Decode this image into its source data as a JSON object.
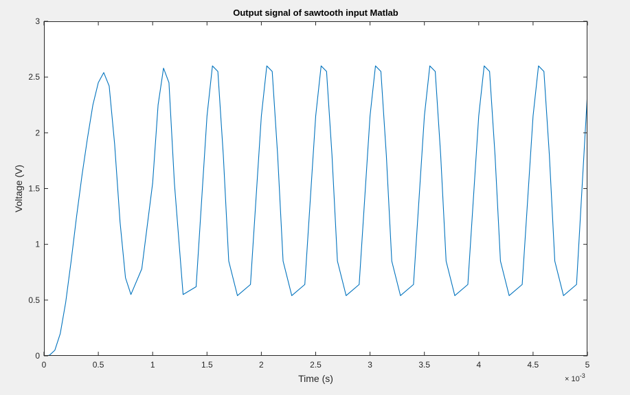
{
  "chart_data": {
    "type": "line",
    "title": "Output signal of sawtooth input Matlab",
    "xlabel": "Time (s)",
    "ylabel": "Voltage (V)",
    "xlim": [
      0,
      0.005
    ],
    "ylim": [
      0,
      3
    ],
    "x_exponent_label": "× 10",
    "x_exponent": "-3",
    "xticks": [
      0,
      0.0005,
      0.001,
      0.0015,
      0.002,
      0.0025,
      0.003,
      0.0035,
      0.004,
      0.0045,
      0.005
    ],
    "xtick_labels": [
      "0",
      "0.5",
      "1",
      "1.5",
      "2",
      "2.5",
      "3",
      "3.5",
      "4",
      "4.5",
      "5"
    ],
    "yticks": [
      0,
      0.5,
      1,
      1.5,
      2,
      2.5,
      3
    ],
    "ytick_labels": [
      "0",
      "0.5",
      "1",
      "1.5",
      "2",
      "2.5",
      "3"
    ],
    "grid": false,
    "colors": {
      "line": "#0072bd",
      "axes_bg": "#ffffff",
      "figure_bg": "#f0f0f0",
      "axis": "#262626"
    },
    "series": [
      {
        "x": [
          0,
          5e-05,
          0.0001,
          0.00015,
          0.0002,
          0.00025,
          0.0003,
          0.00035,
          0.0004,
          0.00045,
          0.0005,
          0.00055,
          0.0006,
          0.00065,
          0.0007,
          0.00075,
          0.0008,
          0.0009,
          0.001,
          0.00105,
          0.0011,
          0.00115,
          0.0012,
          0.00128,
          0.0014,
          0.0015,
          0.00155,
          0.0016,
          0.00165,
          0.0017,
          0.00178,
          0.0019,
          0.002,
          0.00205,
          0.0021,
          0.00215,
          0.0022,
          0.00228,
          0.0024,
          0.0025,
          0.00255,
          0.0026,
          0.00265,
          0.0027,
          0.00278,
          0.0029,
          0.003,
          0.00305,
          0.0031,
          0.00315,
          0.0032,
          0.00328,
          0.0034,
          0.0035,
          0.00355,
          0.0036,
          0.00365,
          0.0037,
          0.00378,
          0.0039,
          0.004,
          0.00405,
          0.0041,
          0.00415,
          0.0042,
          0.00428,
          0.0044,
          0.0045,
          0.00455,
          0.0046,
          0.00465,
          0.0047,
          0.00478,
          0.0049,
          0.005
        ],
        "y": [
          0,
          0.005,
          0.05,
          0.2,
          0.48,
          0.85,
          1.25,
          1.62,
          1.95,
          2.25,
          2.45,
          2.54,
          2.42,
          1.9,
          1.2,
          0.7,
          0.55,
          0.78,
          1.55,
          2.25,
          2.58,
          2.45,
          1.55,
          0.55,
          0.62,
          2.15,
          2.6,
          2.55,
          1.8,
          0.85,
          0.54,
          0.64,
          2.15,
          2.6,
          2.55,
          1.8,
          0.85,
          0.54,
          0.64,
          2.15,
          2.6,
          2.55,
          1.8,
          0.85,
          0.54,
          0.64,
          2.15,
          2.6,
          2.55,
          1.8,
          0.85,
          0.54,
          0.64,
          2.15,
          2.6,
          2.55,
          1.8,
          0.85,
          0.54,
          0.64,
          2.15,
          2.6,
          2.55,
          1.8,
          0.85,
          0.54,
          0.64,
          2.15,
          2.6,
          2.55,
          1.8,
          0.85,
          0.54,
          0.64,
          2.35
        ]
      }
    ]
  }
}
